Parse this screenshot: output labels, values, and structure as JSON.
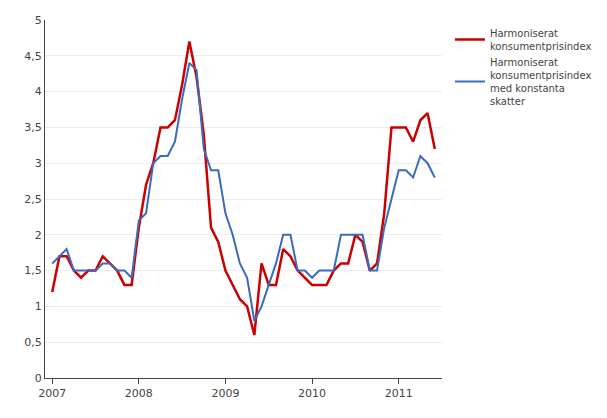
{
  "chart_data": {
    "type": "line",
    "categories": [
      "2007",
      null,
      null,
      null,
      null,
      null,
      null,
      null,
      null,
      null,
      null,
      null,
      "2008",
      null,
      null,
      null,
      null,
      null,
      null,
      null,
      null,
      null,
      null,
      null,
      "2009",
      null,
      null,
      null,
      null,
      null,
      null,
      null,
      null,
      null,
      null,
      null,
      "2010",
      null,
      null,
      null,
      null,
      null,
      null,
      null,
      null,
      null,
      null,
      null,
      "2011",
      null,
      null,
      null,
      null,
      null
    ],
    "series": [
      {
        "name": "Harmoniserat\nkonsumentprisindex",
        "color": "#cc0000",
        "values": [
          1.2,
          1.7,
          1.7,
          1.5,
          1.4,
          1.5,
          1.5,
          1.7,
          1.6,
          1.5,
          1.3,
          1.3,
          2.1,
          2.7,
          3.0,
          3.5,
          3.5,
          3.6,
          4.1,
          4.7,
          4.2,
          3.4,
          2.1,
          1.9,
          1.5,
          1.3,
          1.1,
          1.0,
          0.6,
          1.6,
          1.3,
          1.3,
          1.8,
          1.7,
          1.5,
          1.4,
          1.3,
          1.3,
          1.3,
          1.5,
          1.6,
          1.6,
          2.0,
          1.9,
          1.5,
          1.6,
          2.3,
          3.5,
          3.5,
          3.5,
          3.3,
          3.6,
          3.7,
          3.2
        ]
      },
      {
        "name": "Harmoniserat\nkonsumentprisindex\nmed konstanta\nskatter",
        "color": "#3a6bbf",
        "values": [
          1.6,
          1.7,
          1.8,
          1.5,
          1.5,
          1.5,
          1.5,
          1.6,
          1.6,
          1.5,
          1.5,
          1.4,
          2.2,
          2.3,
          3.0,
          3.1,
          3.1,
          3.3,
          3.9,
          4.4,
          4.3,
          3.2,
          2.9,
          2.9,
          2.3,
          2.0,
          1.6,
          1.4,
          0.8,
          1.0,
          1.3,
          1.6,
          2.0,
          2.0,
          1.5,
          1.5,
          1.4,
          1.5,
          1.5,
          1.5,
          2.0,
          2.0,
          2.0,
          2.0,
          1.5,
          1.5,
          2.1,
          2.5,
          2.9,
          2.9,
          2.8,
          3.1,
          3.0,
          2.8
        ]
      }
    ],
    "ylim": [
      0,
      5
    ],
    "yticks": [
      0,
      {
        "value": 0.5,
        "label": "0,5"
      },
      1,
      {
        "value": 1.5,
        "label": "1,5"
      },
      2,
      {
        "value": 2.5,
        "label": "2,5"
      },
      3,
      {
        "value": 3.5,
        "label": "3,5"
      },
      4,
      {
        "value": 4.5,
        "label": "4,5"
      },
      5
    ],
    "grid": true,
    "legend": "upper right"
  }
}
